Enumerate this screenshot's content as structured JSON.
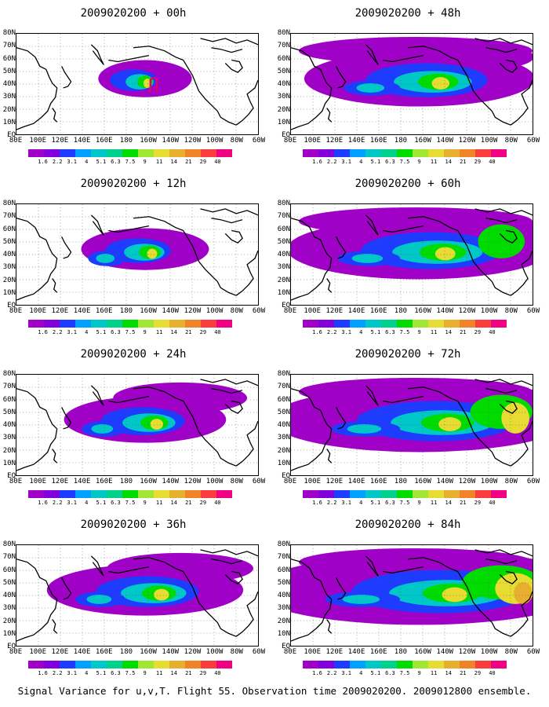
{
  "caption": "Signal Variance for u,v,T. Flight 55. Observation time 2009020200. 2009012800 ensemble.",
  "panels": [
    {
      "title": "2009020200 + 00h",
      "intensity": 0
    },
    {
      "title": "2009020200 + 12h",
      "intensity": 1
    },
    {
      "title": "2009020200 + 24h",
      "intensity": 2
    },
    {
      "title": "2009020200 + 36h",
      "intensity": 3
    },
    {
      "title": "2009020200 + 48h",
      "intensity": 4
    },
    {
      "title": "2009020200 + 60h",
      "intensity": 5
    },
    {
      "title": "2009020200 + 72h",
      "intensity": 6
    },
    {
      "title": "2009020200 + 84h",
      "intensity": 7
    }
  ],
  "lat_labels": [
    "80N",
    "70N",
    "60N",
    "50N",
    "40N",
    "30N",
    "20N",
    "10N",
    "EQ"
  ],
  "lon_labels": [
    "80E",
    "100E",
    "120E",
    "140E",
    "160E",
    "180",
    "160W",
    "140W",
    "120W",
    "100W",
    "80W",
    "60W"
  ],
  "colorbar": {
    "labels": [
      "1.6",
      "2.2",
      "3.1",
      "4",
      "5.1",
      "6.3",
      "7.5",
      "9",
      "11",
      "14",
      "21",
      "29",
      "40"
    ],
    "colors": [
      "#a000c8",
      "#8200dc",
      "#1e3cff",
      "#00a0ff",
      "#00c8c8",
      "#00d28c",
      "#00dc00",
      "#a0e632",
      "#e6dc32",
      "#e6af2d",
      "#f08228",
      "#fa3c3c",
      "#f00082"
    ]
  }
}
